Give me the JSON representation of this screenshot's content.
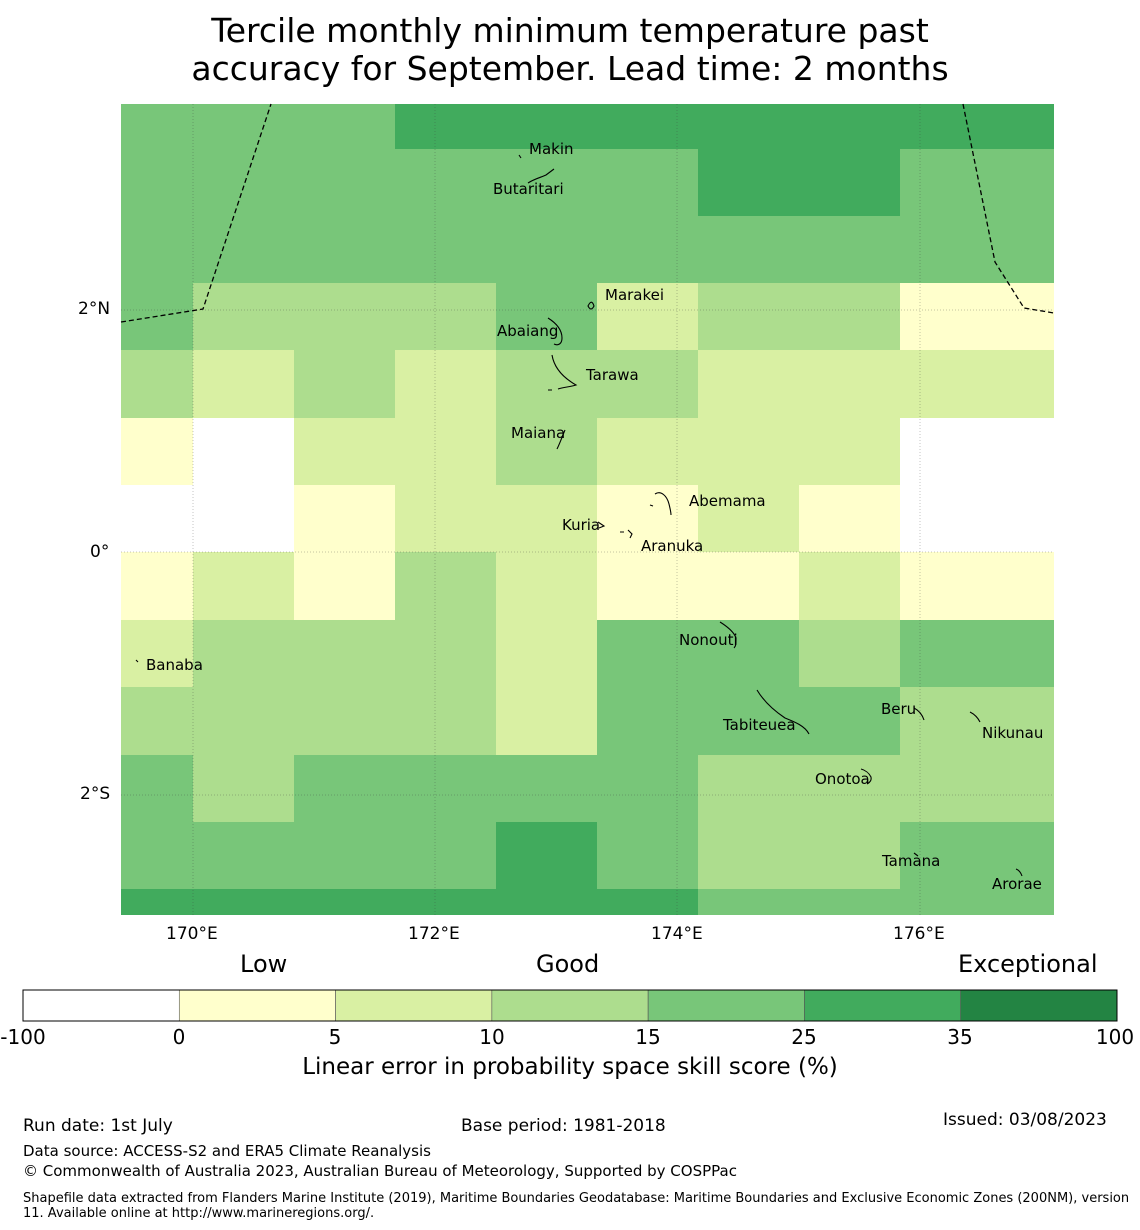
{
  "title_line1": "Tercile monthly minimum temperature past",
  "title_line2": "accuracy for September. Lead time: 2 months",
  "map": {
    "lon_labels": [
      "170°E",
      "172°E",
      "174°E",
      "176°E"
    ],
    "lat_labels": [
      "2°N",
      "0°",
      "2°S"
    ],
    "places": [
      "Makin",
      "Butaritari",
      "Marakei",
      "Abaiang",
      "Tarawa",
      "Maiana",
      "Abemama",
      "Kuria",
      "Aranuka",
      "Nonouti",
      "Banaba",
      "Tabiteuea",
      "Beru",
      "Nikunau",
      "Onotoa",
      "Tamana",
      "Arorae"
    ],
    "skill_grid": [
      [
        4,
        4,
        4,
        5,
        5,
        5,
        5,
        5,
        5
      ],
      [
        4,
        4,
        4,
        4,
        4,
        4,
        5,
        5,
        4
      ],
      [
        4,
        4,
        4,
        4,
        4,
        4,
        4,
        4,
        4
      ],
      [
        4,
        3,
        3,
        3,
        4,
        2,
        3,
        3,
        1
      ],
      [
        3,
        2,
        3,
        2,
        3,
        3,
        2,
        2,
        2
      ],
      [
        1,
        0,
        2,
        2,
        3,
        2,
        2,
        2,
        0
      ],
      [
        0,
        0,
        1,
        2,
        2,
        1,
        2,
        1,
        0
      ],
      [
        1,
        2,
        1,
        3,
        2,
        1,
        1,
        2,
        1
      ],
      [
        2,
        3,
        3,
        3,
        2,
        4,
        4,
        3,
        4
      ],
      [
        3,
        3,
        3,
        3,
        2,
        4,
        4,
        4,
        3
      ],
      [
        4,
        3,
        4,
        4,
        4,
        4,
        3,
        3,
        3
      ],
      [
        4,
        4,
        4,
        4,
        5,
        4,
        3,
        3,
        4
      ],
      [
        5,
        5,
        5,
        5,
        5,
        5,
        4,
        4,
        4
      ]
    ]
  },
  "colorbar": {
    "categories": [
      "Low",
      "Good",
      "Exceptional"
    ],
    "ticks": [
      "-100",
      "0",
      "5",
      "10",
      "15",
      "25",
      "35",
      "100"
    ],
    "colors": [
      "#ffffff",
      "#ffffcc",
      "#d9f0a3",
      "#addd8e",
      "#78c679",
      "#41ab5d",
      "#238443"
    ],
    "label": "Linear error in probability space skill score (%)"
  },
  "footer": {
    "run_date": "Run date: 1st July",
    "base_period": "Base period: 1981-2018",
    "issued": "Issued: 03/08/2023",
    "data_source": "Data source: ACCESS-S2 and ERA5 Climate Reanalysis",
    "copyright": "© Commonwealth of Australia 2023, Australian Bureau of Meteorology, Supported by COSPPac",
    "shapefile": "Shapefile data extracted from Flanders Marine Institute (2019), Maritime Boundaries Geodatabase: Maritime Boundaries and Exclusive Economic Zones (200NM), version 11. Available online at http://www.marineregions.org/."
  }
}
